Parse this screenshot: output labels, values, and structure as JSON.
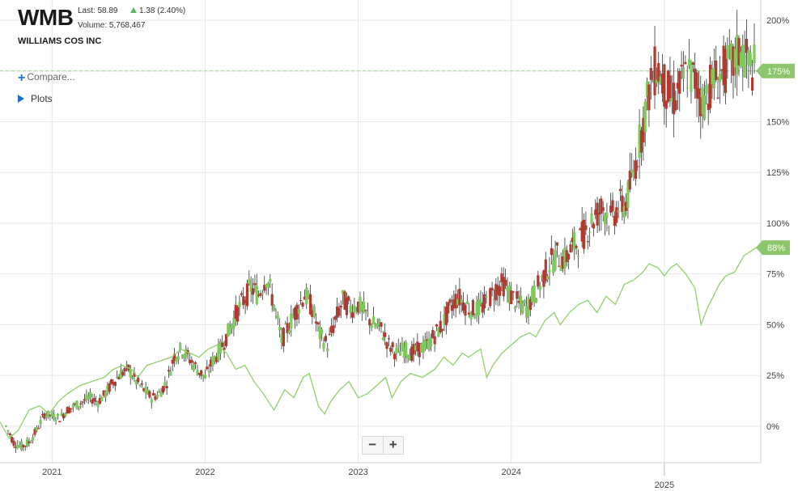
{
  "header": {
    "ticker": "WMB",
    "company": "WILLIAMS COS INC",
    "last": "Last: 58.89",
    "change": "1.38 (2.40%)",
    "volume": "Volume: 5,768,467"
  },
  "menu": {
    "compare": "Compare...",
    "plots": "Plots"
  },
  "zoom": {
    "minus": "−",
    "plus": "+"
  },
  "colors": {
    "up": "#7ec95b",
    "down": "#b03a2e",
    "comparison_line": "#8fd06b",
    "badge": "#8cc56c",
    "grid": "#e6e6e6",
    "crosshair": "#9ed48a"
  },
  "chart_data": {
    "type": "candlestick+line",
    "x_ticks": [
      "2021",
      "2022",
      "2023",
      "2024",
      "2025"
    ],
    "y_ticks": [
      "200%",
      "175%",
      "150%",
      "125%",
      "100%",
      "75%",
      "50%",
      "25%",
      "0%"
    ],
    "y_tick_values": [
      200,
      175,
      150,
      125,
      100,
      75,
      50,
      25,
      0
    ],
    "ylim": [
      -18,
      210
    ],
    "xlim": [
      2020.66,
      2025.63
    ],
    "crosshair_value": 175,
    "series": [
      {
        "kind": "candles",
        "badge": "175%",
        "last_value": 175,
        "points": [
          [
            2020.7,
            0
          ],
          [
            2020.75,
            -8
          ],
          [
            2020.8,
            -10
          ],
          [
            2020.85,
            -8
          ],
          [
            2020.9,
            -2
          ],
          [
            2020.95,
            6
          ],
          [
            2021.0,
            5
          ],
          [
            2021.05,
            4
          ],
          [
            2021.1,
            8
          ],
          [
            2021.15,
            10
          ],
          [
            2021.2,
            12
          ],
          [
            2021.25,
            14
          ],
          [
            2021.3,
            12
          ],
          [
            2021.35,
            16
          ],
          [
            2021.4,
            22
          ],
          [
            2021.45,
            26
          ],
          [
            2021.5,
            28
          ],
          [
            2021.55,
            22
          ],
          [
            2021.6,
            18
          ],
          [
            2021.65,
            14
          ],
          [
            2021.7,
            16
          ],
          [
            2021.75,
            22
          ],
          [
            2021.8,
            35
          ],
          [
            2021.85,
            38
          ],
          [
            2021.9,
            33
          ],
          [
            2021.95,
            28
          ],
          [
            2022.0,
            24
          ],
          [
            2022.05,
            32
          ],
          [
            2022.1,
            38
          ],
          [
            2022.15,
            46
          ],
          [
            2022.2,
            55
          ],
          [
            2022.25,
            62
          ],
          [
            2022.3,
            68
          ],
          [
            2022.35,
            65
          ],
          [
            2022.4,
            74
          ],
          [
            2022.45,
            60
          ],
          [
            2022.5,
            42
          ],
          [
            2022.55,
            50
          ],
          [
            2022.6,
            58
          ],
          [
            2022.65,
            65
          ],
          [
            2022.7,
            58
          ],
          [
            2022.75,
            45
          ],
          [
            2022.8,
            40
          ],
          [
            2022.85,
            52
          ],
          [
            2022.9,
            62
          ],
          [
            2022.95,
            58
          ],
          [
            2023.0,
            60
          ],
          [
            2023.05,
            55
          ],
          [
            2023.1,
            50
          ],
          [
            2023.15,
            48
          ],
          [
            2023.2,
            40
          ],
          [
            2023.25,
            36
          ],
          [
            2023.3,
            38
          ],
          [
            2023.35,
            36
          ],
          [
            2023.4,
            38
          ],
          [
            2023.45,
            40
          ],
          [
            2023.5,
            45
          ],
          [
            2023.55,
            50
          ],
          [
            2023.6,
            58
          ],
          [
            2023.65,
            64
          ],
          [
            2023.7,
            60
          ],
          [
            2023.75,
            57
          ],
          [
            2023.8,
            58
          ],
          [
            2023.85,
            62
          ],
          [
            2023.9,
            68
          ],
          [
            2023.95,
            70
          ],
          [
            2024.0,
            64
          ],
          [
            2024.05,
            60
          ],
          [
            2024.1,
            58
          ],
          [
            2024.15,
            65
          ],
          [
            2024.2,
            72
          ],
          [
            2024.25,
            80
          ],
          [
            2024.3,
            84
          ],
          [
            2024.35,
            82
          ],
          [
            2024.4,
            88
          ],
          [
            2024.45,
            92
          ],
          [
            2024.5,
            98
          ],
          [
            2024.55,
            104
          ],
          [
            2024.6,
            108
          ],
          [
            2024.65,
            102
          ],
          [
            2024.7,
            108
          ],
          [
            2024.75,
            110
          ],
          [
            2024.8,
            125
          ],
          [
            2024.85,
            145
          ],
          [
            2024.9,
            165
          ],
          [
            2024.95,
            178
          ],
          [
            2025.0,
            168
          ],
          [
            2025.05,
            160
          ],
          [
            2025.1,
            166
          ],
          [
            2025.15,
            175
          ],
          [
            2025.2,
            170
          ],
          [
            2025.25,
            160
          ],
          [
            2025.3,
            168
          ],
          [
            2025.35,
            172
          ],
          [
            2025.4,
            176
          ],
          [
            2025.45,
            178
          ],
          [
            2025.5,
            186
          ],
          [
            2025.55,
            178
          ],
          [
            2025.6,
            175
          ]
        ]
      },
      {
        "kind": "line",
        "badge": "88%",
        "last_value": 88,
        "points": [
          [
            2020.66,
            2
          ],
          [
            2020.72,
            -6
          ],
          [
            2020.78,
            -2
          ],
          [
            2020.85,
            8
          ],
          [
            2020.92,
            10
          ],
          [
            2020.98,
            6
          ],
          [
            2021.04,
            12
          ],
          [
            2021.1,
            16
          ],
          [
            2021.18,
            20
          ],
          [
            2021.26,
            22
          ],
          [
            2021.34,
            24
          ],
          [
            2021.4,
            28
          ],
          [
            2021.46,
            30
          ],
          [
            2021.52,
            28
          ],
          [
            2021.56,
            24
          ],
          [
            2021.62,
            30
          ],
          [
            2021.7,
            32
          ],
          [
            2021.78,
            34
          ],
          [
            2021.84,
            38
          ],
          [
            2021.9,
            36
          ],
          [
            2021.96,
            34
          ],
          [
            2022.02,
            38
          ],
          [
            2022.08,
            40
          ],
          [
            2022.14,
            36
          ],
          [
            2022.2,
            28
          ],
          [
            2022.26,
            30
          ],
          [
            2022.32,
            22
          ],
          [
            2022.38,
            16
          ],
          [
            2022.45,
            8
          ],
          [
            2022.52,
            18
          ],
          [
            2022.58,
            14
          ],
          [
            2022.64,
            24
          ],
          [
            2022.68,
            26
          ],
          [
            2022.74,
            10
          ],
          [
            2022.78,
            6
          ],
          [
            2022.82,
            12
          ],
          [
            2022.88,
            18
          ],
          [
            2022.94,
            22
          ],
          [
            2023.0,
            14
          ],
          [
            2023.06,
            16
          ],
          [
            2023.12,
            20
          ],
          [
            2023.18,
            24
          ],
          [
            2023.22,
            14
          ],
          [
            2023.28,
            22
          ],
          [
            2023.34,
            26
          ],
          [
            2023.42,
            24
          ],
          [
            2023.5,
            28
          ],
          [
            2023.56,
            34
          ],
          [
            2023.62,
            30
          ],
          [
            2023.68,
            36
          ],
          [
            2023.72,
            34
          ],
          [
            2023.76,
            36
          ],
          [
            2023.8,
            38
          ],
          [
            2023.84,
            24
          ],
          [
            2023.88,
            30
          ],
          [
            2023.94,
            36
          ],
          [
            2024.0,
            40
          ],
          [
            2024.06,
            44
          ],
          [
            2024.12,
            46
          ],
          [
            2024.16,
            44
          ],
          [
            2024.22,
            52
          ],
          [
            2024.28,
            56
          ],
          [
            2024.32,
            50
          ],
          [
            2024.38,
            56
          ],
          [
            2024.44,
            60
          ],
          [
            2024.5,
            62
          ],
          [
            2024.56,
            56
          ],
          [
            2024.62,
            64
          ],
          [
            2024.68,
            60
          ],
          [
            2024.74,
            70
          ],
          [
            2024.8,
            72
          ],
          [
            2024.86,
            76
          ],
          [
            2024.9,
            80
          ],
          [
            2024.96,
            78
          ],
          [
            2025.0,
            74
          ],
          [
            2025.04,
            78
          ],
          [
            2025.08,
            80
          ],
          [
            2025.14,
            75
          ],
          [
            2025.2,
            68
          ],
          [
            2025.24,
            50
          ],
          [
            2025.28,
            58
          ],
          [
            2025.32,
            64
          ],
          [
            2025.36,
            70
          ],
          [
            2025.4,
            74
          ],
          [
            2025.46,
            76
          ],
          [
            2025.52,
            84
          ],
          [
            2025.56,
            86
          ],
          [
            2025.6,
            88
          ]
        ]
      }
    ]
  }
}
